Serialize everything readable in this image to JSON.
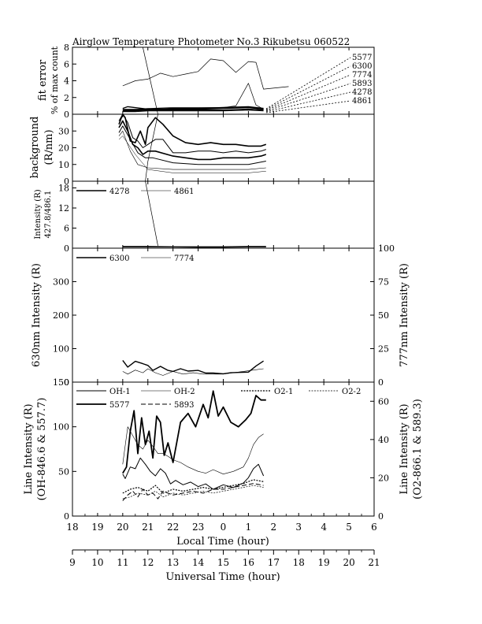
{
  "title": "Airglow Temperature Photometer No.3  Rikubetsu  060522",
  "x_axes": {
    "local": {
      "label": "Local Time (hour)",
      "ticks": [
        "18",
        "19",
        "20",
        "21",
        "22",
        "23",
        "0",
        "1",
        "2",
        "3",
        "4",
        "5",
        "6"
      ]
    },
    "universal": {
      "label": "Universal Time (hour)",
      "ticks": [
        "9",
        "10",
        "11",
        "12",
        "13",
        "14",
        "15",
        "16",
        "17",
        "18",
        "19",
        "20",
        "21"
      ]
    }
  },
  "panels": {
    "fit_error": {
      "ylabel_line1": "fit error",
      "ylabel_line2": "% of max count",
      "ticks": [
        "0",
        "2",
        "4",
        "6",
        "8"
      ],
      "legend": [
        "5577",
        "6300",
        "7774",
        "5893",
        "4278",
        "4861"
      ]
    },
    "background": {
      "ylabel_line1": "background",
      "ylabel_line2": "(R/nm)",
      "ticks": [
        "0",
        "10",
        "20",
        "30",
        "40"
      ]
    },
    "blue_intensity": {
      "ylabel_line1": "Intensity (R)",
      "ylabel_line2": "427.8/486.1",
      "ticks": [
        "0",
        "6",
        "12",
        "18"
      ],
      "legend": [
        "4278",
        "4861"
      ]
    },
    "oi_intensity": {
      "ylabel_left": "630nm Intensity (R)",
      "ylabel_right": "777nm Intensity (R)",
      "ticks_left": [
        "0",
        "100",
        "200",
        "300"
      ],
      "ticks_right": [
        "0",
        "25",
        "50",
        "75",
        "100"
      ],
      "legend": [
        "6300",
        "7774"
      ]
    },
    "line_intensity": {
      "ylabel_left_line1": "Line Intensity (R)",
      "ylabel_left_line2": "(OH-846.6 & 557.7)",
      "ylabel_right_line1": "Line Intensity (R)",
      "ylabel_right_line2": "(O2-866.1 & 589.3)",
      "ticks_left": [
        "0",
        "50",
        "100",
        "150"
      ],
      "ticks_right": [
        "0",
        "20",
        "40",
        "60"
      ],
      "legend": [
        "OH-1",
        "OH-2",
        "O2-1",
        "O2-2",
        "5577",
        "5893"
      ]
    }
  },
  "chart_data": [
    {
      "type": "line",
      "panel": "fit error",
      "ylabel": "fit error % of max count",
      "ylim": [
        0,
        8
      ],
      "x_unit": "local hour (continuous, 24 = 00 LT)",
      "series": [
        {
          "name": "5577",
          "x": [
            20.0,
            20.5,
            21.0,
            21.5,
            22.0,
            22.5,
            23.0,
            23.5,
            24.0,
            24.5,
            25.0,
            25.3,
            25.6,
            26.6
          ],
          "values": [
            3.4,
            4.0,
            4.2,
            4.9,
            4.5,
            4.8,
            5.1,
            6.6,
            6.4,
            5.0,
            6.3,
            6.2,
            3.0,
            3.3
          ]
        },
        {
          "name": "6300",
          "x": [
            20.0,
            20.5,
            21.0,
            22.0,
            23.0,
            24.0,
            24.5,
            25.0,
            25.3,
            25.6
          ],
          "values": [
            0.6,
            0.6,
            0.7,
            0.8,
            0.8,
            0.8,
            1.0,
            3.7,
            1.1,
            0.6
          ]
        },
        {
          "name": "7774",
          "x": [
            20.0,
            20.2,
            21.0,
            22.0,
            23.0,
            24.0,
            25.0,
            25.6
          ],
          "values": [
            0.7,
            0.9,
            0.6,
            0.7,
            0.7,
            0.8,
            0.9,
            0.7
          ]
        },
        {
          "name": "5893",
          "x": [
            20.0,
            20.5,
            21.0,
            22.0,
            23.0,
            24.0,
            25.0,
            25.6
          ],
          "values": [
            0.5,
            0.5,
            0.6,
            0.6,
            0.6,
            0.7,
            0.8,
            0.6
          ]
        },
        {
          "name": "4278",
          "x": [
            20.0,
            20.5,
            21.0,
            22.0,
            23.0,
            24.0,
            25.0,
            25.6
          ],
          "values": [
            0.4,
            0.4,
            0.5,
            0.5,
            0.5,
            0.5,
            0.6,
            0.5
          ]
        },
        {
          "name": "4861",
          "x": [
            20.0,
            20.5,
            21.0,
            22.0,
            23.0,
            24.0,
            25.0,
            25.6
          ],
          "values": [
            0.3,
            0.3,
            0.4,
            0.4,
            0.4,
            0.4,
            0.5,
            0.4
          ]
        }
      ]
    },
    {
      "type": "line",
      "panel": "background",
      "ylabel": "background (R/nm)",
      "ylim": [
        0,
        40
      ],
      "series": [
        {
          "x": [
            19.85,
            20.0,
            20.1,
            20.3,
            20.5,
            20.7,
            20.9,
            21.0,
            21.3,
            21.6,
            22.0,
            22.5,
            23.0,
            23.5,
            24.0,
            24.5,
            25.0,
            25.5,
            25.7
          ],
          "values": [
            34,
            41,
            38,
            24,
            23,
            30,
            22,
            32,
            38,
            34,
            27,
            23,
            22,
            23,
            22,
            22,
            21,
            21,
            22
          ]
        },
        {
          "x": [
            19.85,
            20.0,
            20.2,
            20.4,
            20.6,
            20.8,
            21.0,
            21.3,
            21.6,
            22.0,
            22.5,
            23.0,
            23.5,
            24.0,
            24.5,
            25.0,
            25.5,
            25.7
          ],
          "values": [
            36,
            40,
            35,
            26,
            24,
            20,
            22,
            25,
            25,
            17,
            17,
            18,
            18,
            17,
            18,
            17,
            18,
            19
          ]
        },
        {
          "x": [
            19.85,
            20.0,
            20.2,
            20.4,
            20.6,
            20.8,
            21.0,
            21.3,
            22.0,
            22.5,
            23.0,
            23.5,
            24.0,
            24.5,
            25.0,
            25.5,
            25.7
          ],
          "values": [
            32,
            36,
            30,
            22,
            20,
            16,
            18,
            18,
            15,
            14,
            13,
            13,
            14,
            14,
            14,
            15,
            16
          ]
        },
        {
          "x": [
            19.85,
            20.0,
            20.3,
            20.6,
            20.9,
            21.2,
            22.0,
            23.0,
            24.0,
            25.0,
            25.7
          ],
          "values": [
            29,
            33,
            25,
            17,
            14,
            14,
            11,
            10,
            10,
            10,
            12
          ]
        },
        {
          "x": [
            19.85,
            20.0,
            20.3,
            20.6,
            21.0,
            22.0,
            23.0,
            24.0,
            25.0,
            25.7
          ],
          "values": [
            27,
            30,
            18,
            10,
            8,
            7,
            7,
            7,
            7,
            8
          ]
        },
        {
          "x": [
            19.85,
            20.0,
            20.5,
            21.0,
            22.0,
            23.0,
            24.0,
            25.0,
            25.7
          ],
          "values": [
            25,
            27,
            16,
            7,
            5,
            5,
            5,
            5,
            6
          ]
        }
      ]
    },
    {
      "type": "line",
      "panel": "427.8/486.1 intensity",
      "ylabel": "Intensity (R) 427.8/486.1",
      "ylim": [
        0,
        20
      ],
      "series": [
        {
          "name": "4278",
          "x": [
            20.0,
            21.0,
            22.0,
            23.0,
            24.0,
            25.0,
            25.7
          ],
          "values": [
            0.5,
            0.5,
            0.4,
            0.4,
            0.4,
            0.5,
            0.5
          ]
        },
        {
          "name": "4861",
          "x": [
            20.0,
            21.0,
            22.0,
            23.0,
            24.0,
            25.0,
            25.7
          ],
          "values": [
            0.3,
            0.3,
            0.3,
            0.2,
            0.2,
            0.3,
            0.3
          ]
        }
      ]
    },
    {
      "type": "line",
      "panel": "630nm / 777nm intensity",
      "ylabel": "630nm Intensity (R)",
      "ylabel_right": "777nm Intensity (R)",
      "ylim": [
        0,
        400
      ],
      "ylim_right": [
        0,
        100
      ],
      "series": [
        {
          "name": "6300",
          "axis": "left",
          "x": [
            20.0,
            20.2,
            20.5,
            20.8,
            21.0,
            21.2,
            21.5,
            21.8,
            22.0,
            22.3,
            22.6,
            23.0,
            23.3,
            23.6,
            24.0,
            24.3,
            24.6,
            25.0,
            25.3,
            25.6
          ],
          "values": [
            65,
            45,
            62,
            55,
            50,
            35,
            47,
            35,
            32,
            40,
            33,
            35,
            27,
            27,
            25,
            28,
            29,
            30,
            48,
            63
          ]
        },
        {
          "name": "7774",
          "axis": "right",
          "x": [
            20.0,
            20.2,
            20.5,
            20.8,
            21.0,
            21.3,
            21.6,
            22.0,
            22.4,
            22.8,
            23.2,
            23.6,
            24.0,
            24.4,
            24.8,
            25.2,
            25.6
          ],
          "values": [
            8,
            6,
            9,
            7,
            10,
            7,
            5,
            8,
            6,
            7,
            6,
            6,
            6,
            7,
            8,
            9,
            10
          ]
        }
      ]
    },
    {
      "type": "line",
      "panel": "line intensity",
      "ylabel": "Line Intensity (R) (OH-846.6 & 557.7)",
      "ylabel_right": "Line Intensity (R) (O2-866.1 & 589.3)",
      "ylim": [
        0,
        150
      ],
      "ylim_right": [
        0,
        70
      ],
      "series": [
        {
          "name": "OH-1",
          "axis": "left",
          "x": [
            20.0,
            20.1,
            20.3,
            20.5,
            20.7,
            20.9,
            21.1,
            21.3,
            21.5,
            21.7,
            21.9,
            22.1,
            22.4,
            22.7,
            23.0,
            23.3,
            23.6,
            24.0,
            24.4,
            24.8,
            25.0,
            25.2,
            25.4,
            25.6
          ],
          "values": [
            47,
            42,
            55,
            53,
            65,
            58,
            50,
            45,
            53,
            48,
            36,
            40,
            35,
            38,
            33,
            36,
            30,
            35,
            32,
            37,
            43,
            53,
            58,
            45
          ]
        },
        {
          "name": "OH-2",
          "axis": "left",
          "x": [
            20.0,
            20.2,
            20.4,
            20.6,
            20.8,
            21.0,
            21.2,
            21.4,
            21.6,
            21.8,
            22.0,
            22.3,
            22.6,
            23.0,
            23.3,
            23.6,
            24.0,
            24.4,
            24.8,
            25.0,
            25.2,
            25.4,
            25.6
          ],
          "values": [
            58,
            100,
            90,
            80,
            75,
            85,
            78,
            70,
            70,
            67,
            63,
            60,
            55,
            50,
            48,
            52,
            47,
            50,
            55,
            65,
            80,
            88,
            92
          ]
        },
        {
          "name": "O2-1",
          "axis": "right",
          "x": [
            20.0,
            20.3,
            20.6,
            21.0,
            21.3,
            21.6,
            22.0,
            22.4,
            22.8,
            23.2,
            23.6,
            24.0,
            24.4,
            24.8,
            25.2,
            25.6
          ],
          "values": [
            12,
            14,
            15,
            13,
            16,
            12,
            14,
            13,
            14,
            15,
            14,
            15,
            16,
            17,
            19,
            18
          ]
        },
        {
          "name": "O2-2",
          "axis": "right",
          "x": [
            20.0,
            20.3,
            20.6,
            21.0,
            21.3,
            21.6,
            22.0,
            22.4,
            22.8,
            23.2,
            23.6,
            24.0,
            24.4,
            24.8,
            25.2,
            25.6
          ],
          "values": [
            9,
            10,
            12,
            11,
            13,
            10,
            12,
            11,
            12,
            13,
            12,
            13,
            14,
            15,
            16,
            15
          ]
        },
        {
          "name": "5577",
          "axis": "left",
          "x": [
            20.0,
            20.15,
            20.3,
            20.45,
            20.6,
            20.75,
            20.9,
            21.05,
            21.2,
            21.35,
            21.5,
            21.65,
            21.8,
            22.0,
            22.3,
            22.6,
            22.9,
            23.2,
            23.4,
            23.6,
            23.8,
            24.0,
            24.3,
            24.6,
            24.9,
            25.1,
            25.3,
            25.5,
            25.7
          ],
          "values": [
            48,
            55,
            95,
            118,
            70,
            110,
            80,
            95,
            65,
            112,
            105,
            68,
            82,
            60,
            105,
            115,
            100,
            125,
            110,
            140,
            112,
            122,
            105,
            100,
            108,
            115,
            135,
            130,
            130
          ]
        },
        {
          "name": "5893",
          "axis": "right",
          "x": [
            20.0,
            20.2,
            20.4,
            20.6,
            20.8,
            21.0,
            21.2,
            21.4,
            21.6,
            21.8,
            22.0,
            22.4,
            22.8,
            23.2,
            23.6,
            24.0,
            24.4,
            24.8,
            25.2,
            25.6
          ],
          "values": [
            8,
            11,
            13,
            10,
            14,
            11,
            12,
            9,
            13,
            12,
            11,
            12,
            13,
            12,
            14,
            14,
            15,
            16,
            17,
            16
          ]
        }
      ]
    }
  ]
}
